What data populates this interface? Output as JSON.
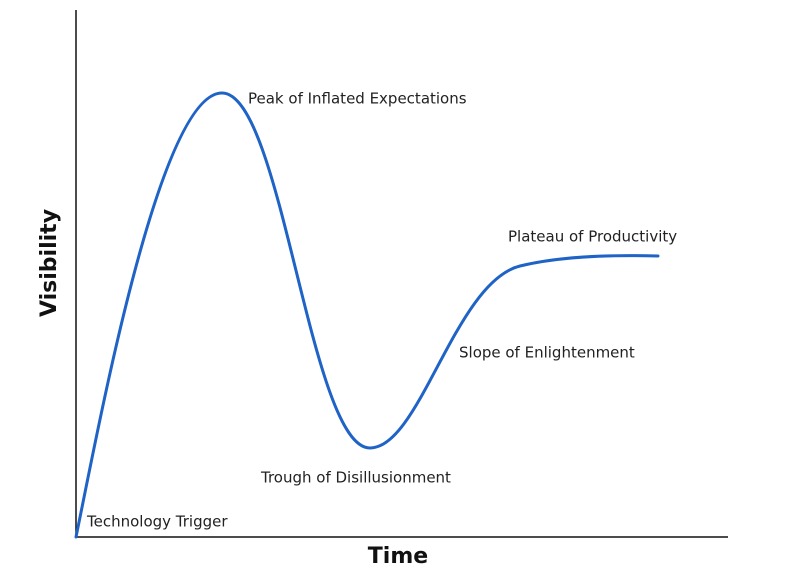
{
  "axes": {
    "y_label": "Visibility",
    "x_label": "Time"
  },
  "phases": [
    {
      "label": "Technology Trigger"
    },
    {
      "label": "Peak of Inflated Expectations"
    },
    {
      "label": "Trough of Disillusionment"
    },
    {
      "label": "Slope of Enlightenment"
    },
    {
      "label": "Plateau of Productivity"
    }
  ]
}
